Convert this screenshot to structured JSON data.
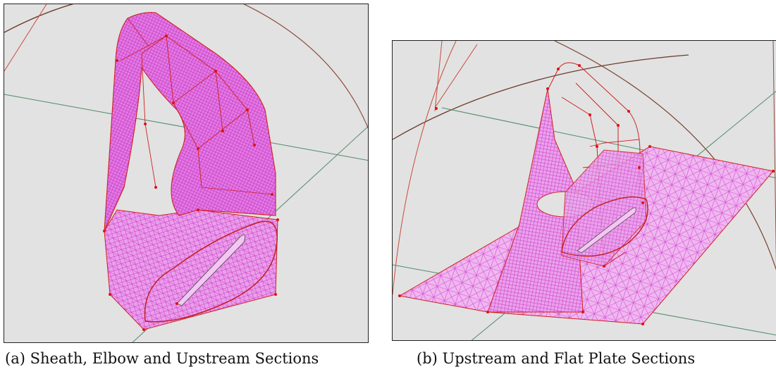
{
  "figure": {
    "panels": [
      {
        "id": "a",
        "caption": "(a) Sheath, Elbow and Upstream Sections",
        "view": "sheath-elbow-upstream-mesh"
      },
      {
        "id": "b",
        "caption": "(b) Upstream and Flat Plate Sections",
        "view": "upstream-flatplate-mesh"
      }
    ]
  },
  "colors": {
    "background": "#e2e2e2",
    "mesh_edge": "#dd33dd",
    "mesh_fill": "#e887e8",
    "block_edge": "#d02020",
    "vertex": "#e01010",
    "axis": "#4f8a6a",
    "boundary_arc": "#6b3a2a"
  }
}
